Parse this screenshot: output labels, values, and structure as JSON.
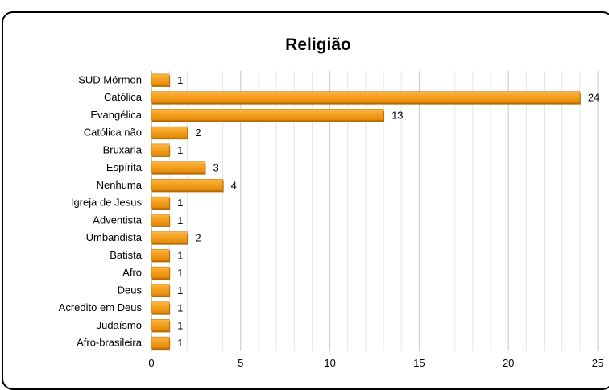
{
  "chart_data": {
    "type": "bar",
    "orientation": "horizontal",
    "title": "Religião",
    "xlabel": "",
    "ylabel": "",
    "xlim": [
      0,
      25
    ],
    "xticks": [
      0,
      5,
      10,
      15,
      20,
      25
    ],
    "grid": true,
    "legend": "none",
    "bar_color": "#f5a01e",
    "categories": [
      "SUD Mórmon",
      "Católica",
      "Evangélica",
      "Católica não",
      "Bruxaria",
      "Espírita",
      "Nenhuma",
      "Igreja de Jesus",
      "Adventista",
      "Umbandista",
      "Batista",
      "Afro",
      "Deus",
      "Acredito em Deus",
      "Judaísmo",
      "Afro-brasileira"
    ],
    "values": [
      1,
      24,
      13,
      2,
      1,
      3,
      4,
      1,
      1,
      2,
      1,
      1,
      1,
      1,
      1,
      1
    ]
  }
}
